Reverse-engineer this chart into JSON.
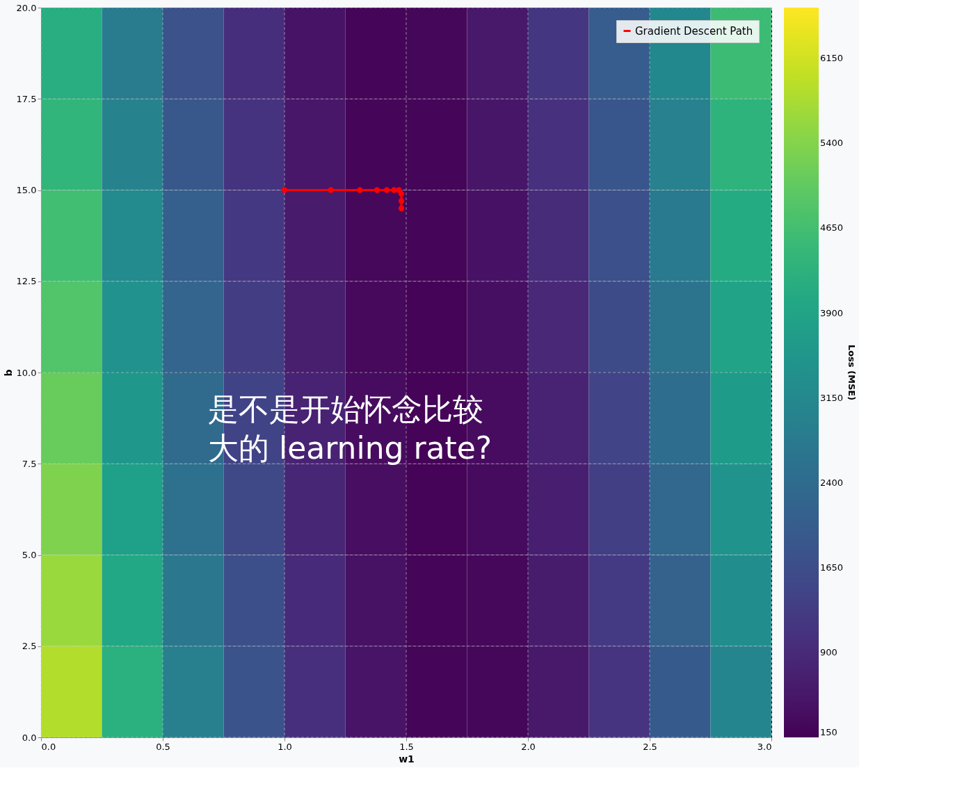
{
  "chart_data": {
    "type": "heatmap",
    "xlabel": "w1",
    "ylabel": "b",
    "clabel": "Loss (MSE)",
    "x": [
      0.125,
      0.375,
      0.625,
      0.875,
      1.125,
      1.375,
      1.625,
      1.875,
      2.125,
      2.375,
      2.625,
      2.875
    ],
    "y": [
      18.75,
      16.25,
      13.75,
      11.25,
      8.75,
      6.25,
      3.75,
      1.25
    ],
    "cells": [
      [
        4170,
        2830,
        1770,
        980,
        460,
        220,
        250,
        560,
        1150,
        2010,
        3140,
        4550
      ],
      [
        4400,
        3010,
        1910,
        1080,
        520,
        240,
        230,
        500,
        1040,
        1860,
        2960,
        4320
      ],
      [
        4630,
        3210,
        2060,
        1180,
        590,
        260,
        210,
        440,
        940,
        1720,
        2770,
        4100
      ],
      [
        4860,
        3400,
        2210,
        1300,
        660,
        290,
        200,
        390,
        850,
        1590,
        2600,
        3880
      ],
      [
        5110,
        3600,
        2370,
        1420,
        740,
        330,
        200,
        340,
        760,
        1460,
        2430,
        3670
      ],
      [
        5360,
        3810,
        2540,
        1540,
        820,
        370,
        200,
        310,
        680,
        1340,
        2270,
        3470
      ],
      [
        5620,
        4030,
        2710,
        1680,
        910,
        420,
        210,
        270,
        610,
        1220,
        2110,
        3270
      ],
      [
        5870,
        4250,
        2890,
        1810,
        1010,
        480,
        220,
        250,
        540,
        1110,
        1960,
        3080
      ]
    ],
    "clim": [
      150,
      6600
    ],
    "cticks": [
      150,
      900,
      1650,
      2400,
      3150,
      3900,
      4650,
      5400,
      6150
    ],
    "xlim": [
      0,
      3
    ],
    "xticks": [
      {
        "value": 0,
        "label": "0.0"
      },
      0.5,
      {
        "value": 1,
        "label": "1.0"
      },
      1.5,
      {
        "value": 2,
        "label": "2.0"
      },
      2.5,
      {
        "value": 3,
        "label": "3.0"
      }
    ],
    "ylim": [
      0,
      20
    ],
    "yticks": [
      {
        "value": 0,
        "label": "0.0"
      },
      2.5,
      {
        "value": 5,
        "label": "5.0"
      },
      7.5,
      {
        "value": 10,
        "label": "10.0"
      },
      12.5,
      {
        "value": 15,
        "label": "15.0"
      },
      17.5,
      {
        "value": 20,
        "label": "20.0"
      }
    ],
    "series": [
      {
        "name": "Gradient Descent Path",
        "type": "line",
        "color": "#ff0000",
        "marker": "circle",
        "x": [
          1.0,
          1.19,
          1.31,
          1.38,
          1.42,
          1.45,
          1.47,
          1.48,
          1.48,
          1.48
        ],
        "values": [
          15,
          15,
          15,
          15,
          15,
          15,
          15,
          14.9,
          14.7,
          14.5
        ]
      }
    ],
    "annotations": [
      "是不是开始怀念比较大的 learning rate?"
    ],
    "grid": true,
    "legend": "top right"
  }
}
